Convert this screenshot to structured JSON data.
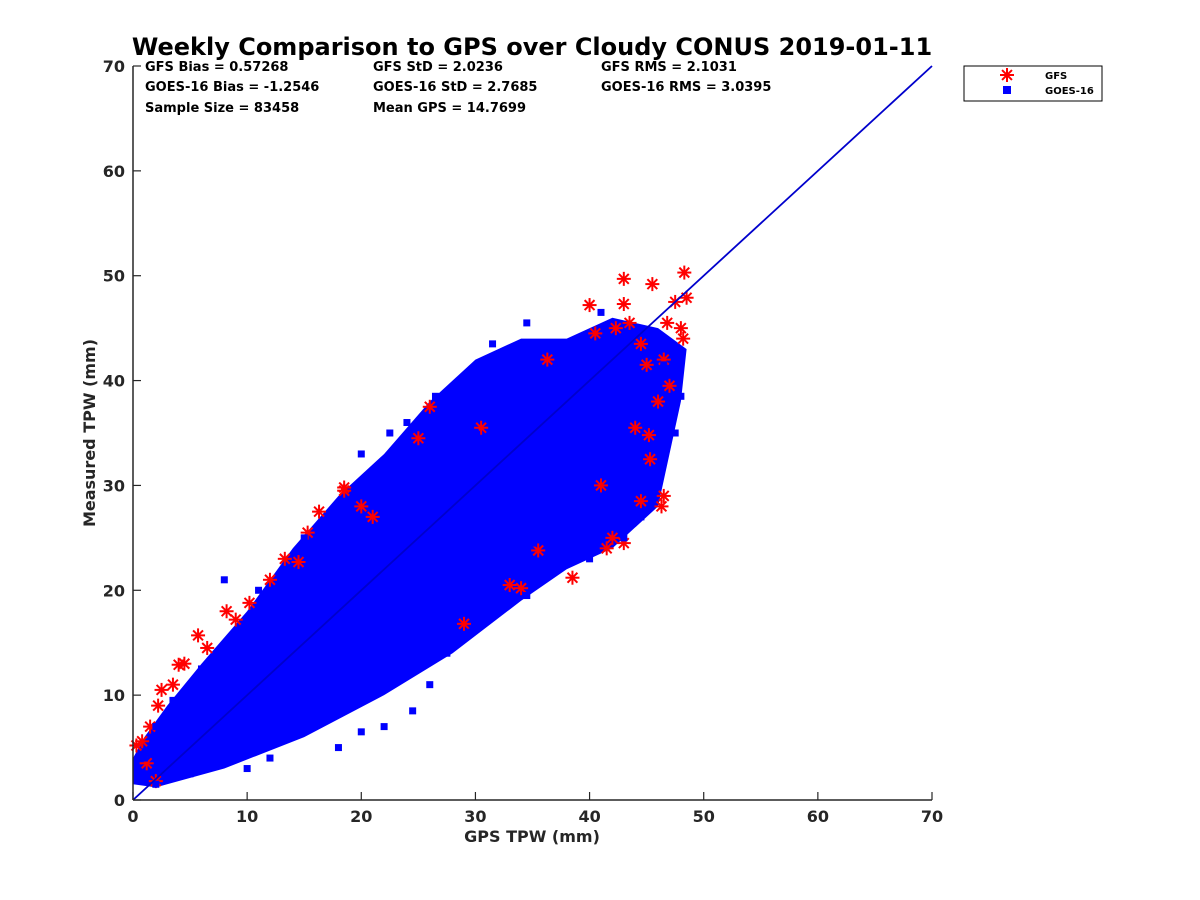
{
  "chart_data": {
    "type": "scatter",
    "title": "Weekly Comparison to GPS over Cloudy CONUS 2019-01-11",
    "xlabel": "GPS TPW (mm)",
    "ylabel": "Measured TPW (mm)",
    "xlim": [
      0,
      70
    ],
    "ylim": [
      0,
      70
    ],
    "x_ticks": [
      "0",
      "10",
      "20",
      "30",
      "40",
      "50",
      "60",
      "70"
    ],
    "y_ticks": [
      "0",
      "10",
      "20",
      "30",
      "40",
      "50",
      "60",
      "70"
    ],
    "grid": false,
    "legend_position": "outside top-right",
    "stats": {
      "gfs_bias": "GFS Bias = 0.57268",
      "goes_bias": "GOES-16 Bias = -1.2546",
      "sample_size": "Sample Size = 83458",
      "gfs_std": "GFS StD = 2.0236",
      "goes_std": "GOES-16 StD = 2.7685",
      "mean_gps": "Mean GPS = 14.7699",
      "gfs_rms": "GFS RMS = 2.1031",
      "goes_rms": "GOES-16 RMS = 3.0395"
    },
    "reference_line": {
      "x": [
        0,
        70
      ],
      "y": [
        0,
        70
      ],
      "color": "#0000cc"
    },
    "series": [
      {
        "name": "GFS",
        "marker": "asterisk",
        "color": "#ff0000",
        "points": [
          [
            0.3,
            5.2
          ],
          [
            0.8,
            5.6
          ],
          [
            1.2,
            3.5
          ],
          [
            2.2,
            9.0
          ],
          [
            2.5,
            10.5
          ],
          [
            4.0,
            12.9
          ],
          [
            4.5,
            13.0
          ],
          [
            5.7,
            15.7
          ],
          [
            8.2,
            18.0
          ],
          [
            9.0,
            17.2
          ],
          [
            10.2,
            18.8
          ],
          [
            13.3,
            23.0
          ],
          [
            14.5,
            22.7
          ],
          [
            15.3,
            25.5
          ],
          [
            16.3,
            27.5
          ],
          [
            18.5,
            29.8
          ],
          [
            18.5,
            29.5
          ],
          [
            20.0,
            28.0
          ],
          [
            26.0,
            37.5
          ],
          [
            29.0,
            16.8
          ],
          [
            36.3,
            42.0
          ],
          [
            38.5,
            21.2
          ],
          [
            40.0,
            47.2
          ],
          [
            41.5,
            24.0
          ],
          [
            42.3,
            45.0
          ],
          [
            43.0,
            49.7
          ],
          [
            43.0,
            47.3
          ],
          [
            43.0,
            24.5
          ],
          [
            45.0,
            41.5
          ],
          [
            45.2,
            34.8
          ],
          [
            45.3,
            32.5
          ],
          [
            45.5,
            49.2
          ],
          [
            46.3,
            28.0
          ],
          [
            46.5,
            29.0
          ],
          [
            46.8,
            45.5
          ],
          [
            47.5,
            47.5
          ],
          [
            48.0,
            45.0
          ],
          [
            48.2,
            44.0
          ],
          [
            48.3,
            50.3
          ],
          [
            48.5,
            47.9
          ],
          [
            46.0,
            38.0
          ],
          [
            44.5,
            28.5
          ],
          [
            44.0,
            35.5
          ],
          [
            42.0,
            25.0
          ],
          [
            35.5,
            23.8
          ],
          [
            33.0,
            20.5
          ],
          [
            34.0,
            20.2
          ],
          [
            25.0,
            34.5
          ],
          [
            30.5,
            35.5
          ],
          [
            21.0,
            27.0
          ],
          [
            12.0,
            21.0
          ],
          [
            6.5,
            14.5
          ],
          [
            3.5,
            11.0
          ],
          [
            1.5,
            7.0
          ],
          [
            2.0,
            1.8
          ],
          [
            40.5,
            44.5
          ],
          [
            43.5,
            45.5
          ],
          [
            44.5,
            43.5
          ],
          [
            46.5,
            42.0
          ],
          [
            47.0,
            39.5
          ],
          [
            41.0,
            30.0
          ]
        ]
      },
      {
        "name": "GOES-16",
        "marker": "square",
        "color": "#0000ff",
        "points": [
          [
            1.0,
            4.0
          ],
          [
            2.5,
            5.5
          ],
          [
            4.0,
            6.5
          ],
          [
            6.0,
            9.0
          ],
          [
            8.0,
            11.5
          ],
          [
            10.0,
            13.0
          ],
          [
            12.0,
            16.0
          ],
          [
            14.0,
            18.5
          ],
          [
            16.0,
            20.5
          ],
          [
            18.0,
            23.0
          ],
          [
            20.0,
            25.0
          ],
          [
            22.0,
            27.0
          ],
          [
            24.0,
            29.0
          ],
          [
            26.0,
            31.5
          ],
          [
            28.0,
            33.0
          ],
          [
            30.0,
            35.0
          ],
          [
            32.0,
            37.0
          ],
          [
            34.0,
            38.5
          ],
          [
            36.0,
            40.0
          ],
          [
            38.0,
            41.0
          ],
          [
            40.0,
            42.0
          ],
          [
            42.0,
            43.0
          ],
          [
            44.0,
            42.0
          ],
          [
            45.5,
            40.5
          ],
          [
            46.5,
            41.5
          ],
          [
            47.5,
            42.5
          ],
          [
            48.0,
            38.5
          ],
          [
            43.0,
            36.0
          ],
          [
            41.0,
            33.0
          ],
          [
            39.0,
            30.0
          ],
          [
            37.0,
            27.0
          ],
          [
            35.0,
            24.5
          ],
          [
            33.0,
            22.0
          ],
          [
            31.0,
            20.5
          ],
          [
            29.0,
            18.0
          ],
          [
            27.0,
            16.0
          ],
          [
            25.0,
            15.0
          ],
          [
            23.0,
            13.5
          ],
          [
            21.0,
            12.0
          ],
          [
            19.0,
            11.0
          ],
          [
            17.0,
            9.5
          ],
          [
            15.0,
            8.0
          ],
          [
            13.0,
            7.0
          ],
          [
            11.0,
            5.5
          ],
          [
            9.0,
            4.5
          ],
          [
            7.0,
            3.5
          ],
          [
            5.0,
            2.5
          ],
          [
            3.0,
            2.0
          ],
          [
            2.0,
            1.5
          ],
          [
            8.0,
            21.0
          ],
          [
            29.5,
            16.0
          ],
          [
            35.0,
            42.5
          ],
          [
            41.0,
            46.5
          ],
          [
            34.5,
            45.5
          ],
          [
            31.5,
            43.5
          ],
          [
            26.5,
            38.5
          ],
          [
            24.0,
            36.0
          ],
          [
            20.0,
            33.0
          ],
          [
            22.5,
            35.0
          ],
          [
            18.0,
            28.0
          ],
          [
            15.0,
            25.0
          ],
          [
            11.0,
            20.0
          ],
          [
            6.0,
            12.5
          ],
          [
            3.5,
            9.5
          ],
          [
            2.0,
            7.0
          ],
          [
            27.5,
            14.0
          ],
          [
            26.0,
            11.0
          ],
          [
            24.5,
            8.5
          ],
          [
            22.0,
            7.0
          ],
          [
            20.0,
            6.5
          ],
          [
            18.0,
            5.0
          ],
          [
            12.0,
            4.0
          ],
          [
            10.0,
            3.0
          ],
          [
            47.5,
            35.0
          ],
          [
            46.0,
            30.5
          ],
          [
            44.5,
            27.0
          ],
          [
            43.0,
            25.0
          ],
          [
            40.0,
            23.0
          ],
          [
            37.0,
            22.5
          ],
          [
            34.5,
            19.5
          ]
        ]
      }
    ]
  }
}
